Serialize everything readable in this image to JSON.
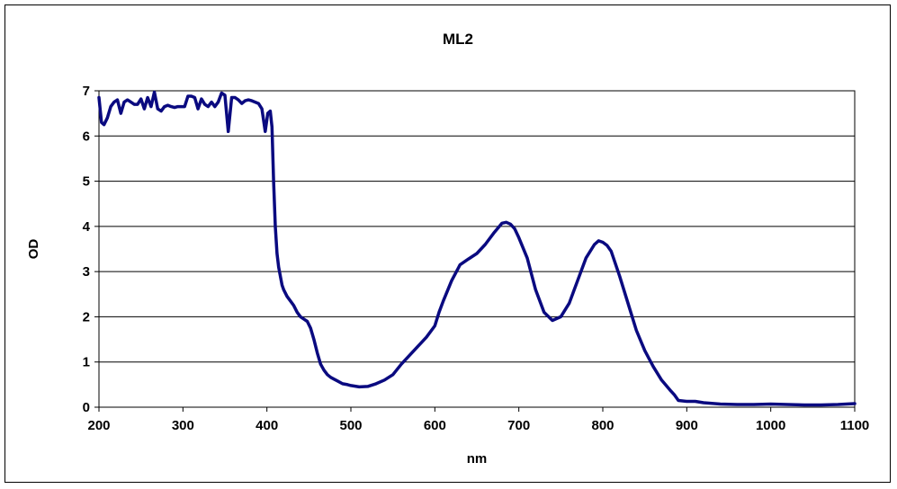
{
  "chart_data": {
    "type": "line",
    "title": "ML2",
    "xlabel": "nm",
    "ylabel": "OD",
    "xlim": [
      200,
      1100
    ],
    "ylim": [
      0,
      7
    ],
    "xticks": [
      "200",
      "300",
      "400",
      "500",
      "600",
      "700",
      "800",
      "900",
      "1000",
      "1100"
    ],
    "yticks": [
      "0",
      "1",
      "2",
      "3",
      "4",
      "5",
      "6",
      "7"
    ],
    "grid": "horizontal",
    "legend": "none",
    "series": [
      {
        "color": "#0a0a80",
        "x": [
          200,
          203,
          206,
          210,
          214,
          218,
          222,
          226,
          230,
          234,
          238,
          242,
          246,
          250,
          254,
          258,
          262,
          266,
          270,
          274,
          278,
          282,
          286,
          290,
          294,
          298,
          302,
          306,
          310,
          314,
          318,
          322,
          326,
          330,
          334,
          338,
          342,
          346,
          350,
          354,
          358,
          362,
          366,
          370,
          374,
          378,
          382,
          386,
          390,
          394,
          398,
          401,
          404,
          406,
          408,
          410,
          412,
          414,
          416,
          418,
          420,
          424,
          428,
          432,
          436,
          440,
          444,
          448,
          452,
          456,
          460,
          464,
          468,
          472,
          476,
          480,
          484,
          490,
          496,
          500,
          510,
          520,
          530,
          540,
          550,
          560,
          570,
          580,
          590,
          600,
          605,
          610,
          620,
          630,
          640,
          650,
          660,
          670,
          680,
          685,
          690,
          695,
          700,
          710,
          720,
          730,
          740,
          750,
          760,
          770,
          780,
          790,
          795,
          800,
          805,
          810,
          820,
          830,
          840,
          850,
          860,
          870,
          880,
          885,
          890,
          900,
          910,
          920,
          940,
          960,
          980,
          1000,
          1020,
          1040,
          1060,
          1080,
          1100
        ],
        "y": [
          6.85,
          6.3,
          6.25,
          6.4,
          6.65,
          6.75,
          6.8,
          6.5,
          6.75,
          6.8,
          6.75,
          6.7,
          6.7,
          6.82,
          6.6,
          6.85,
          6.65,
          6.97,
          6.6,
          6.55,
          6.65,
          6.68,
          6.65,
          6.63,
          6.65,
          6.65,
          6.65,
          6.88,
          6.88,
          6.85,
          6.6,
          6.82,
          6.7,
          6.65,
          6.75,
          6.65,
          6.75,
          6.95,
          6.9,
          6.1,
          6.85,
          6.85,
          6.8,
          6.72,
          6.78,
          6.8,
          6.78,
          6.75,
          6.72,
          6.6,
          6.1,
          6.5,
          6.55,
          6.2,
          5.0,
          4.0,
          3.4,
          3.1,
          2.9,
          2.7,
          2.6,
          2.45,
          2.35,
          2.25,
          2.1,
          2.0,
          1.95,
          1.9,
          1.75,
          1.5,
          1.2,
          0.95,
          0.82,
          0.72,
          0.66,
          0.62,
          0.58,
          0.52,
          0.5,
          0.48,
          0.45,
          0.46,
          0.52,
          0.6,
          0.72,
          0.95,
          1.15,
          1.35,
          1.55,
          1.8,
          2.1,
          2.35,
          2.8,
          3.15,
          3.28,
          3.4,
          3.6,
          3.85,
          4.07,
          4.09,
          4.05,
          3.95,
          3.75,
          3.3,
          2.6,
          2.1,
          1.92,
          2.0,
          2.3,
          2.8,
          3.3,
          3.6,
          3.68,
          3.65,
          3.58,
          3.45,
          2.9,
          2.3,
          1.7,
          1.25,
          0.9,
          0.6,
          0.38,
          0.28,
          0.15,
          0.13,
          0.13,
          0.1,
          0.07,
          0.06,
          0.06,
          0.07,
          0.06,
          0.05,
          0.05,
          0.06,
          0.08
        ]
      }
    ]
  }
}
